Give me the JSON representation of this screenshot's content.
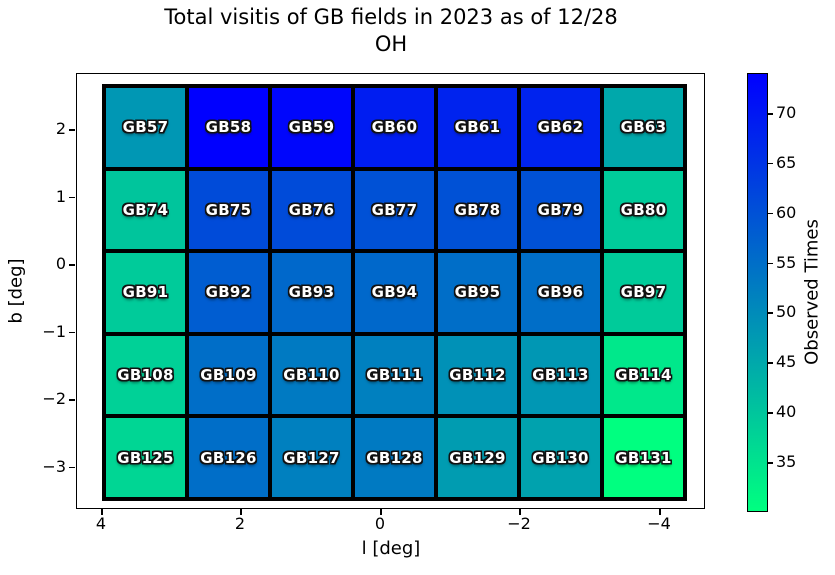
{
  "title": {
    "line1": "Total visitis of GB fields in 2023 as of 12/28",
    "line2": "OH"
  },
  "axes": {
    "xlabel": "l [deg]",
    "ylabel": "b [deg]",
    "x_tick_labels": [
      "4",
      "2",
      "0",
      "−2",
      "−4"
    ],
    "y_tick_labels": [
      "2",
      "1",
      "0",
      "−1",
      "−2",
      "−3"
    ]
  },
  "colorbar": {
    "label": "Observed Times",
    "tick_values": [
      70,
      65,
      60,
      55,
      50,
      45,
      40,
      35
    ],
    "vmin": 30,
    "vmax": 74,
    "top_color": "#0000ff",
    "bottom_color": "#00ff80"
  },
  "chart_data": {
    "type": "heatmap",
    "title": "Total visitis of GB fields in 2023 as of 12/28 OH",
    "xlabel": "l [deg]",
    "ylabel": "b [deg]",
    "colorbar_label": "Observed Times",
    "colormap": "winter reversed (low=green #00ff80, high=blue #0000ff)",
    "value_range": [
      30,
      74
    ],
    "x_axis_reversed": true,
    "x_ticks": [
      4,
      2,
      0,
      -2,
      -4
    ],
    "y_ticks": [
      2,
      1,
      0,
      -1,
      -2,
      -3
    ],
    "grid_shape": [
      5,
      7
    ],
    "cell_labels": [
      [
        "GB57",
        "GB58",
        "GB59",
        "GB60",
        "GB61",
        "GB62",
        "GB63"
      ],
      [
        "GB74",
        "GB75",
        "GB76",
        "GB77",
        "GB78",
        "GB79",
        "GB80"
      ],
      [
        "GB91",
        "GB92",
        "GB93",
        "GB94",
        "GB95",
        "GB96",
        "GB97"
      ],
      [
        "GB108",
        "GB109",
        "GB110",
        "GB111",
        "GB112",
        "GB113",
        "GB114"
      ],
      [
        "GB125",
        "GB126",
        "GB127",
        "GB128",
        "GB129",
        "GB130",
        "GB131"
      ]
    ],
    "cell_values": [
      [
        48,
        74,
        73,
        69,
        68,
        68,
        45
      ],
      [
        40,
        61,
        61,
        60,
        60,
        60,
        39
      ],
      [
        39,
        58,
        56,
        56,
        55,
        55,
        39
      ],
      [
        38,
        55,
        53,
        52,
        49,
        48,
        34
      ],
      [
        37,
        55,
        52,
        53,
        47,
        46,
        30
      ]
    ]
  }
}
